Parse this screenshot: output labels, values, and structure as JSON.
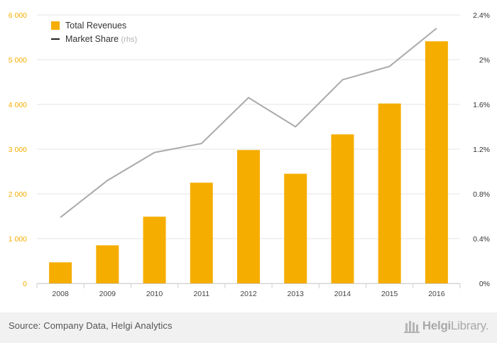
{
  "chart_data": {
    "type": "bar",
    "categories": [
      "2008",
      "2009",
      "2010",
      "2011",
      "2012",
      "2013",
      "2014",
      "2015",
      "2016"
    ],
    "series": [
      {
        "name": "Total Revenues",
        "kind": "bar",
        "axis": "left",
        "color": "#f5ad00",
        "values": [
          470,
          850,
          1490,
          2250,
          2980,
          2450,
          3330,
          4020,
          5410
        ]
      },
      {
        "name": "Market Share",
        "kind": "line",
        "axis": "right",
        "color": "#aaaaaa",
        "values": [
          0.59,
          0.92,
          1.17,
          1.25,
          1.66,
          1.4,
          1.82,
          1.94,
          2.28
        ]
      }
    ],
    "legend": {
      "line_suffix": "(rhs)",
      "placement": "top-left"
    },
    "y_left": {
      "ylim": [
        0,
        6000
      ],
      "ticks": [
        "0",
        "1 000",
        "2 000",
        "3 000",
        "4 000",
        "5 000",
        "6 000"
      ]
    },
    "y_right": {
      "ylim": [
        0,
        2.4
      ],
      "ticks": [
        "0%",
        "0.4%",
        "0.8%",
        "1.2%",
        "1.6%",
        "2%",
        "2.4%"
      ]
    },
    "grid": true,
    "colors": {
      "left_axis_labels": "#f5ad00",
      "grid": "#e6e6e6"
    }
  },
  "footer": {
    "source": "Source: Company Data, Helgi Analytics",
    "brand_bold": "Helgi",
    "brand_light": "Library."
  }
}
